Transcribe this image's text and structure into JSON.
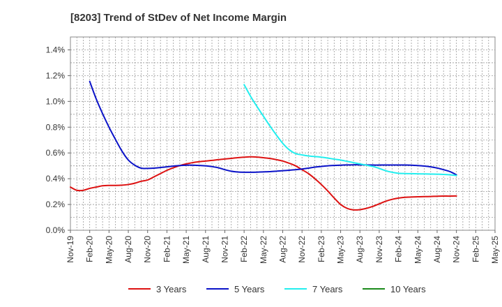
{
  "chart_data": {
    "type": "line",
    "title": "[8203]  Trend of StDev of Net Income Margin",
    "xlabel": "",
    "ylabel": "",
    "x_ticks": [
      "Nov-19",
      "Feb-20",
      "May-20",
      "Aug-20",
      "Nov-20",
      "Feb-21",
      "May-21",
      "Aug-21",
      "Nov-21",
      "Feb-22",
      "May-22",
      "Aug-22",
      "Nov-22",
      "Feb-23",
      "May-23",
      "Aug-23",
      "Nov-23",
      "Feb-24",
      "May-24",
      "Aug-24",
      "Nov-24",
      "Feb-25",
      "May-25"
    ],
    "y_ticks": [
      "0.0%",
      "0.2%",
      "0.4%",
      "0.6%",
      "0.8%",
      "1.0%",
      "1.2%",
      "1.4%"
    ],
    "ylim": [
      0,
      1.5
    ],
    "grid": true,
    "legend_position": "bottom",
    "series": [
      {
        "name": "3 Years",
        "color": "#dd1111",
        "points": [
          [
            "Nov-19",
            0.335
          ],
          [
            "Dec-19",
            0.31
          ],
          [
            "Jan-20",
            0.31
          ],
          [
            "Feb-20",
            0.325
          ],
          [
            "Mar-20",
            0.335
          ],
          [
            "Apr-20",
            0.345
          ],
          [
            "May-20",
            0.348
          ],
          [
            "Jun-20",
            0.348
          ],
          [
            "Jul-20",
            0.35
          ],
          [
            "Aug-20",
            0.355
          ],
          [
            "Sep-20",
            0.365
          ],
          [
            "Oct-20",
            0.38
          ],
          [
            "Nov-20",
            0.39
          ],
          [
            "Dec-20",
            0.415
          ],
          [
            "Jan-21",
            0.44
          ],
          [
            "Feb-21",
            0.465
          ],
          [
            "Mar-21",
            0.485
          ],
          [
            "Apr-21",
            0.502
          ],
          [
            "May-21",
            0.515
          ],
          [
            "Jun-21",
            0.525
          ],
          [
            "Jul-21",
            0.532
          ],
          [
            "Aug-21",
            0.537
          ],
          [
            "Sep-21",
            0.542
          ],
          [
            "Oct-21",
            0.548
          ],
          [
            "Nov-21",
            0.553
          ],
          [
            "Dec-21",
            0.558
          ],
          [
            "Jan-22",
            0.563
          ],
          [
            "Feb-22",
            0.567
          ],
          [
            "Mar-22",
            0.57
          ],
          [
            "Apr-22",
            0.568
          ],
          [
            "May-22",
            0.563
          ],
          [
            "Jun-22",
            0.557
          ],
          [
            "Jul-22",
            0.548
          ],
          [
            "Aug-22",
            0.537
          ],
          [
            "Sep-22",
            0.52
          ],
          [
            "Oct-22",
            0.5
          ],
          [
            "Nov-22",
            0.47
          ],
          [
            "Dec-22",
            0.44
          ],
          [
            "Jan-23",
            0.4
          ],
          [
            "Feb-23",
            0.355
          ],
          [
            "Mar-23",
            0.305
          ],
          [
            "Apr-23",
            0.25
          ],
          [
            "May-23",
            0.2
          ],
          [
            "Jun-23",
            0.17
          ],
          [
            "Jul-23",
            0.158
          ],
          [
            "Aug-23",
            0.16
          ],
          [
            "Sep-23",
            0.17
          ],
          [
            "Oct-23",
            0.185
          ],
          [
            "Nov-23",
            0.205
          ],
          [
            "Dec-23",
            0.225
          ],
          [
            "Jan-24",
            0.24
          ],
          [
            "Feb-24",
            0.25
          ],
          [
            "Mar-24",
            0.256
          ],
          [
            "Apr-24",
            0.258
          ],
          [
            "May-24",
            0.26
          ],
          [
            "Jun-24",
            0.261
          ],
          [
            "Jul-24",
            0.262
          ],
          [
            "Aug-24",
            0.264
          ],
          [
            "Sep-24",
            0.265
          ],
          [
            "Oct-24",
            0.265
          ],
          [
            "Nov-24",
            0.266
          ]
        ]
      },
      {
        "name": "5 Years",
        "color": "#0a12c8",
        "points": [
          [
            "Feb-20",
            1.155
          ],
          [
            "Mar-20",
            1.02
          ],
          [
            "Apr-20",
            0.905
          ],
          [
            "May-20",
            0.8
          ],
          [
            "Jun-20",
            0.705
          ],
          [
            "Jul-20",
            0.615
          ],
          [
            "Aug-20",
            0.545
          ],
          [
            "Sep-20",
            0.505
          ],
          [
            "Oct-20",
            0.482
          ],
          [
            "Nov-20",
            0.48
          ],
          [
            "Dec-20",
            0.482
          ],
          [
            "Jan-21",
            0.487
          ],
          [
            "Feb-21",
            0.492
          ],
          [
            "Mar-21",
            0.498
          ],
          [
            "Apr-21",
            0.502
          ],
          [
            "May-21",
            0.505
          ],
          [
            "Jun-21",
            0.505
          ],
          [
            "Jul-21",
            0.503
          ],
          [
            "Aug-21",
            0.5
          ],
          [
            "Sep-21",
            0.494
          ],
          [
            "Oct-21",
            0.485
          ],
          [
            "Nov-21",
            0.47
          ],
          [
            "Dec-21",
            0.458
          ],
          [
            "Jan-22",
            0.452
          ],
          [
            "Feb-22",
            0.45
          ],
          [
            "Mar-22",
            0.45
          ],
          [
            "Apr-22",
            0.451
          ],
          [
            "May-22",
            0.453
          ],
          [
            "Jun-22",
            0.455
          ],
          [
            "Jul-22",
            0.458
          ],
          [
            "Aug-22",
            0.462
          ],
          [
            "Sep-22",
            0.466
          ],
          [
            "Oct-22",
            0.47
          ],
          [
            "Nov-22",
            0.475
          ],
          [
            "Dec-22",
            0.482
          ],
          [
            "Jan-23",
            0.49
          ],
          [
            "Feb-23",
            0.495
          ],
          [
            "Mar-23",
            0.5
          ],
          [
            "Apr-23",
            0.503
          ],
          [
            "May-23",
            0.505
          ],
          [
            "Jun-23",
            0.507
          ],
          [
            "Jul-23",
            0.508
          ],
          [
            "Aug-23",
            0.508
          ],
          [
            "Sep-23",
            0.507
          ],
          [
            "Oct-23",
            0.506
          ],
          [
            "Nov-23",
            0.506
          ],
          [
            "Dec-23",
            0.506
          ],
          [
            "Jan-24",
            0.506
          ],
          [
            "Feb-24",
            0.506
          ],
          [
            "Mar-24",
            0.506
          ],
          [
            "Apr-24",
            0.505
          ],
          [
            "May-24",
            0.502
          ],
          [
            "Jun-24",
            0.498
          ],
          [
            "Jul-24",
            0.492
          ],
          [
            "Aug-24",
            0.483
          ],
          [
            "Sep-24",
            0.47
          ],
          [
            "Oct-24",
            0.455
          ],
          [
            "Nov-24",
            0.43
          ]
        ]
      },
      {
        "name": "7 Years",
        "color": "#22eeee",
        "points": [
          [
            "Feb-22",
            1.13
          ],
          [
            "Mar-22",
            1.04
          ],
          [
            "Apr-22",
            0.96
          ],
          [
            "May-22",
            0.885
          ],
          [
            "Jun-22",
            0.81
          ],
          [
            "Jul-22",
            0.74
          ],
          [
            "Aug-22",
            0.675
          ],
          [
            "Sep-22",
            0.625
          ],
          [
            "Oct-22",
            0.595
          ],
          [
            "Nov-22",
            0.585
          ],
          [
            "Dec-22",
            0.577
          ],
          [
            "Jan-23",
            0.572
          ],
          [
            "Feb-23",
            0.567
          ],
          [
            "Mar-23",
            0.56
          ],
          [
            "Apr-23",
            0.552
          ],
          [
            "May-23",
            0.545
          ],
          [
            "Jun-23",
            0.535
          ],
          [
            "Jul-23",
            0.525
          ],
          [
            "Aug-23",
            0.515
          ],
          [
            "Sep-23",
            0.505
          ],
          [
            "Oct-23",
            0.495
          ],
          [
            "Nov-23",
            0.48
          ],
          [
            "Dec-23",
            0.462
          ],
          [
            "Jan-24",
            0.45
          ],
          [
            "Feb-24",
            0.442
          ],
          [
            "Mar-24",
            0.44
          ],
          [
            "Apr-24",
            0.439
          ],
          [
            "May-24",
            0.438
          ],
          [
            "Jun-24",
            0.437
          ],
          [
            "Jul-24",
            0.436
          ],
          [
            "Aug-24",
            0.435
          ],
          [
            "Sep-24",
            0.433
          ],
          [
            "Oct-24",
            0.43
          ],
          [
            "Nov-24",
            0.425
          ]
        ]
      },
      {
        "name": "10 Years",
        "color": "#1a8a1a",
        "points": []
      }
    ]
  }
}
